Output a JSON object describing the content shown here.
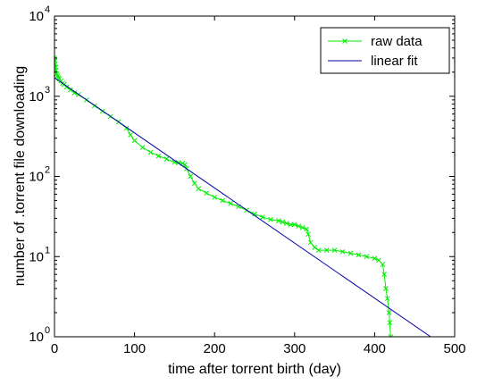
{
  "chart_data": {
    "type": "line",
    "xlabel": "time after torrent birth (day)",
    "ylabel": "number of .torrent file downloading",
    "xlim": [
      0,
      500
    ],
    "ylim": [
      1,
      10000
    ],
    "yscale": "log",
    "grid": false,
    "legend_position": "top-right",
    "x_ticks": [
      0,
      100,
      200,
      300,
      400,
      500
    ],
    "x_tick_labels": [
      "0",
      "100",
      "200",
      "300",
      "400",
      "500"
    ],
    "y_ticks": [
      1,
      10,
      100,
      1000,
      10000
    ],
    "y_tick_labels": [
      {
        "base": "10",
        "exp": "0"
      },
      {
        "base": "10",
        "exp": "1"
      },
      {
        "base": "10",
        "exp": "2"
      },
      {
        "base": "10",
        "exp": "3"
      },
      {
        "base": "10",
        "exp": "4"
      }
    ],
    "series": [
      {
        "name": "raw data",
        "color": "#00ee00",
        "marker": "x",
        "x": [
          0,
          0.5,
          1,
          1.5,
          2,
          3,
          4,
          5,
          6,
          8,
          10,
          12,
          15,
          20,
          25,
          30,
          40,
          50,
          60,
          70,
          80,
          90,
          95,
          100,
          110,
          120,
          130,
          140,
          150,
          155,
          160,
          163,
          165,
          170,
          175,
          180,
          190,
          200,
          210,
          220,
          230,
          240,
          250,
          260,
          270,
          280,
          285,
          290,
          295,
          300,
          305,
          310,
          315,
          317,
          320,
          325,
          330,
          340,
          350,
          360,
          370,
          380,
          390,
          400,
          405,
          410,
          412,
          414,
          416,
          418,
          419,
          420
        ],
        "y": [
          3000,
          2800,
          2500,
          2300,
          2100,
          1900,
          1800,
          1700,
          1650,
          1550,
          1450,
          1400,
          1300,
          1200,
          1100,
          1050,
          900,
          760,
          650,
          560,
          480,
          400,
          330,
          280,
          230,
          200,
          180,
          165,
          150,
          148,
          145,
          140,
          125,
          100,
          82,
          70,
          62,
          55,
          50,
          46,
          42,
          38,
          34,
          31,
          29,
          28,
          27,
          26,
          25,
          25,
          24,
          23,
          22,
          19,
          15,
          13,
          12,
          12,
          12,
          11.5,
          11,
          10.5,
          10,
          9.5,
          9,
          8,
          6,
          4,
          3,
          2,
          1.5,
          1
        ]
      },
      {
        "name": "linear fit",
        "color": "#0000aa",
        "marker": "none",
        "x": [
          0,
          470
        ],
        "y": [
          1700,
          1
        ]
      }
    ]
  }
}
